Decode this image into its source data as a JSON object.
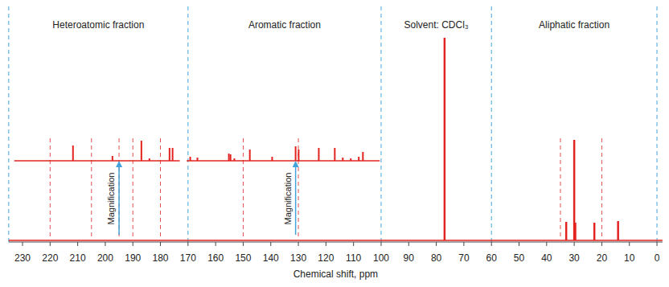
{
  "chart_data": {
    "type": "stick",
    "x_label": "Chemical shift, ppm",
    "xlim": [
      235,
      -2
    ],
    "xticks": [
      230,
      220,
      210,
      200,
      190,
      180,
      170,
      160,
      150,
      140,
      130,
      120,
      110,
      100,
      90,
      80,
      70,
      60,
      50,
      40,
      30,
      20,
      10,
      0
    ],
    "ylim": [
      0,
      260
    ],
    "tick_labels": "x",
    "color": "#e3231f",
    "series": [
      {
        "x": [
          77,
          32.9,
          30.0,
          29.6,
          22.7,
          14.1
        ],
        "values": [
          252,
          23,
          125,
          22,
          22,
          24
        ]
      },
      {
        "xlim": [
          233,
          173
        ],
        "x": [
          211.7,
          197.4,
          186.9,
          184.0,
          176.7,
          175.6
        ],
        "values": [
          19,
          6,
          25,
          3,
          16,
          16
        ]
      },
      {
        "xlim": [
          170.5,
          100.5
        ],
        "x": [
          169.2,
          166.6,
          155.2,
          154.6,
          153.2,
          147.6,
          139.5,
          131.0,
          129.9,
          122.6,
          116.8,
          113.9,
          111.0,
          108.1,
          106.6
        ],
        "values": [
          5,
          4,
          9,
          8,
          3,
          14,
          5,
          18,
          14,
          16,
          16,
          4,
          3,
          5,
          11
        ]
      }
    ],
    "sections": [
      {
        "label": "Heteroatomic fraction",
        "from": 235,
        "to": 170
      },
      {
        "label": "Aromatic fraction",
        "from": 170,
        "to": 100
      },
      {
        "label": "Solvent: CDCl₃",
        "from": 100,
        "to": 60
      },
      {
        "label": "Aliphatic fraction",
        "from": 60,
        "to": 0
      }
    ],
    "reference_lines": [
      220,
      205,
      195,
      190,
      180,
      150,
      130,
      35,
      20
    ],
    "magnification": [
      {
        "value": 195,
        "label": "Magnification"
      },
      {
        "value": 131,
        "label": "Magnification"
      }
    ]
  }
}
